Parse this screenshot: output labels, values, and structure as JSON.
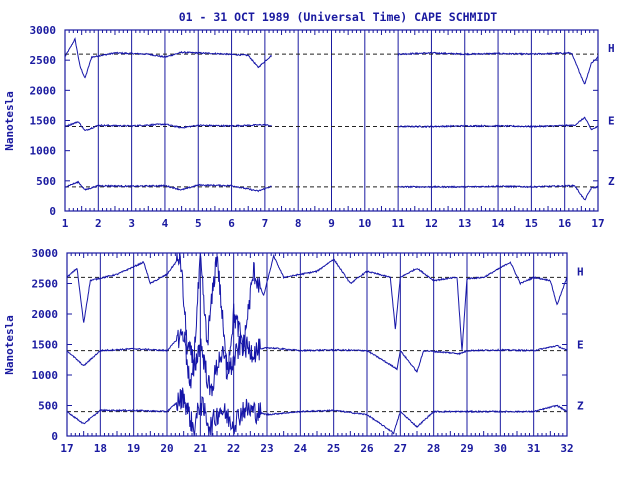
{
  "title": "01 - 31 OCT 1989 (Universal Time) CAPE SCHMIDT",
  "colors": {
    "axis": "#1a1aa0",
    "trace": "#1515a8",
    "background": "#ffffff"
  },
  "chart_data": [
    {
      "type": "line",
      "panel": "top",
      "ylabel": "Nanotesla",
      "ylim": [
        0,
        3000
      ],
      "yticks": [
        "3000",
        "2500",
        "2000",
        "1500",
        "1000",
        "500",
        "0"
      ],
      "xlim": [
        1,
        17
      ],
      "xticks": [
        "1",
        "2",
        "3",
        "4",
        "5",
        "6",
        "7",
        "8",
        "9",
        "10",
        "11",
        "12",
        "13",
        "14",
        "15",
        "16",
        "17"
      ],
      "data_gaps": [
        [
          7.2,
          11.0
        ]
      ],
      "series": [
        {
          "name": "H",
          "baseline": 2600,
          "values_approx": [
            [
              1.0,
              2560
            ],
            [
              1.15,
              2700
            ],
            [
              1.3,
              2850
            ],
            [
              1.45,
              2400
            ],
            [
              1.6,
              2200
            ],
            [
              1.8,
              2550
            ],
            [
              2.5,
              2620
            ],
            [
              3.5,
              2600
            ],
            [
              4.0,
              2550
            ],
            [
              4.5,
              2630
            ],
            [
              5.5,
              2610
            ],
            [
              6.5,
              2580
            ],
            [
              6.8,
              2380
            ],
            [
              7.2,
              2580
            ],
            [
              11.0,
              2600
            ],
            [
              12.0,
              2620
            ],
            [
              13.0,
              2600
            ],
            [
              14.0,
              2610
            ],
            [
              15.0,
              2600
            ],
            [
              16.2,
              2620
            ],
            [
              16.6,
              2100
            ],
            [
              16.8,
              2450
            ],
            [
              17.0,
              2550
            ]
          ]
        },
        {
          "name": "E",
          "baseline": 1400,
          "values_approx": [
            [
              1.0,
              1400
            ],
            [
              1.4,
              1480
            ],
            [
              1.6,
              1330
            ],
            [
              2.0,
              1420
            ],
            [
              3.0,
              1410
            ],
            [
              4.0,
              1440
            ],
            [
              4.5,
              1380
            ],
            [
              5.0,
              1420
            ],
            [
              6.0,
              1410
            ],
            [
              7.0,
              1430
            ],
            [
              7.2,
              1410
            ],
            [
              11.0,
              1400
            ],
            [
              12.0,
              1400
            ],
            [
              13.0,
              1410
            ],
            [
              14.0,
              1410
            ],
            [
              15.0,
              1400
            ],
            [
              16.3,
              1420
            ],
            [
              16.6,
              1550
            ],
            [
              16.8,
              1350
            ],
            [
              17.0,
              1400
            ]
          ]
        },
        {
          "name": "Z",
          "baseline": 400,
          "values_approx": [
            [
              1.0,
              400
            ],
            [
              1.4,
              480
            ],
            [
              1.6,
              350
            ],
            [
              2.0,
              420
            ],
            [
              3.0,
              410
            ],
            [
              4.0,
              420
            ],
            [
              4.5,
              350
            ],
            [
              5.0,
              430
            ],
            [
              6.0,
              420
            ],
            [
              6.8,
              330
            ],
            [
              7.2,
              410
            ],
            [
              11.0,
              400
            ],
            [
              12.0,
              400
            ],
            [
              13.0,
              400
            ],
            [
              14.0,
              410
            ],
            [
              15.0,
              400
            ],
            [
              16.3,
              420
            ],
            [
              16.6,
              180
            ],
            [
              16.8,
              380
            ],
            [
              17.0,
              400
            ]
          ]
        }
      ]
    },
    {
      "type": "line",
      "panel": "bottom",
      "ylabel": "Nanotesla",
      "ylim": [
        0,
        3000
      ],
      "yticks": [
        "3000",
        "2500",
        "2000",
        "1500",
        "1000",
        "500",
        "0"
      ],
      "xlim": [
        17,
        32
      ],
      "xticks": [
        "17",
        "18",
        "19",
        "20",
        "21",
        "22",
        "23",
        "24",
        "25",
        "26",
        "27",
        "28",
        "29",
        "30",
        "31",
        "32"
      ],
      "data_gaps": [],
      "series": [
        {
          "name": "H",
          "baseline": 2600,
          "values_approx": [
            [
              17.0,
              2600
            ],
            [
              17.3,
              2750
            ],
            [
              17.5,
              1850
            ],
            [
              17.7,
              2550
            ],
            [
              18.5,
              2650
            ],
            [
              19.3,
              2850
            ],
            [
              19.5,
              2500
            ],
            [
              20.0,
              2650
            ],
            [
              20.4,
              2950
            ],
            [
              20.6,
              1500
            ],
            [
              20.8,
              1200
            ],
            [
              21.0,
              2900
            ],
            [
              21.2,
              1500
            ],
            [
              21.5,
              3000
            ],
            [
              21.8,
              1000
            ],
            [
              22.0,
              2000
            ],
            [
              22.3,
              1500
            ],
            [
              22.6,
              2700
            ],
            [
              22.9,
              2300
            ],
            [
              23.2,
              2950
            ],
            [
              23.5,
              2600
            ],
            [
              24.0,
              2650
            ],
            [
              24.5,
              2700
            ],
            [
              25.0,
              2900
            ],
            [
              25.5,
              2500
            ],
            [
              26.0,
              2700
            ],
            [
              26.7,
              2600
            ],
            [
              26.85,
              1750
            ],
            [
              27.0,
              2600
            ],
            [
              27.5,
              2750
            ],
            [
              28.0,
              2550
            ],
            [
              28.7,
              2600
            ],
            [
              28.85,
              1400
            ],
            [
              29.0,
              2580
            ],
            [
              29.5,
              2600
            ],
            [
              30.3,
              2850
            ],
            [
              30.6,
              2500
            ],
            [
              31.0,
              2600
            ],
            [
              31.5,
              2550
            ],
            [
              31.7,
              2150
            ],
            [
              32.0,
              2600
            ]
          ]
        },
        {
          "name": "E",
          "baseline": 1400,
          "values_approx": [
            [
              17.0,
              1400
            ],
            [
              17.5,
              1150
            ],
            [
              18.0,
              1400
            ],
            [
              19.0,
              1430
            ],
            [
              20.0,
              1400
            ],
            [
              20.5,
              1700
            ],
            [
              20.7,
              800
            ],
            [
              21.0,
              1550
            ],
            [
              21.3,
              700
            ],
            [
              21.6,
              1350
            ],
            [
              21.9,
              1100
            ],
            [
              22.2,
              1500
            ],
            [
              22.6,
              1380
            ],
            [
              23.0,
              1450
            ],
            [
              24.0,
              1400
            ],
            [
              25.0,
              1410
            ],
            [
              26.0,
              1400
            ],
            [
              26.9,
              1100
            ],
            [
              27.0,
              1400
            ],
            [
              27.5,
              1050
            ],
            [
              27.7,
              1400
            ],
            [
              28.8,
              1350
            ],
            [
              29.0,
              1400
            ],
            [
              30.0,
              1410
            ],
            [
              31.0,
              1400
            ],
            [
              31.7,
              1480
            ],
            [
              32.0,
              1400
            ]
          ]
        },
        {
          "name": "Z",
          "baseline": 400,
          "values_approx": [
            [
              17.0,
              400
            ],
            [
              17.5,
              200
            ],
            [
              18.0,
              420
            ],
            [
              19.0,
              420
            ],
            [
              20.0,
              400
            ],
            [
              20.5,
              650
            ],
            [
              20.8,
              100
            ],
            [
              21.0,
              550
            ],
            [
              21.3,
              150
            ],
            [
              21.6,
              450
            ],
            [
              22.0,
              200
            ],
            [
              22.3,
              450
            ],
            [
              23.0,
              350
            ],
            [
              24.0,
              400
            ],
            [
              25.0,
              420
            ],
            [
              26.0,
              350
            ],
            [
              26.8,
              50
            ],
            [
              27.0,
              400
            ],
            [
              27.5,
              150
            ],
            [
              28.0,
              400
            ],
            [
              29.0,
              400
            ],
            [
              30.0,
              400
            ],
            [
              31.0,
              400
            ],
            [
              31.7,
              500
            ],
            [
              32.0,
              400
            ]
          ]
        }
      ]
    }
  ]
}
